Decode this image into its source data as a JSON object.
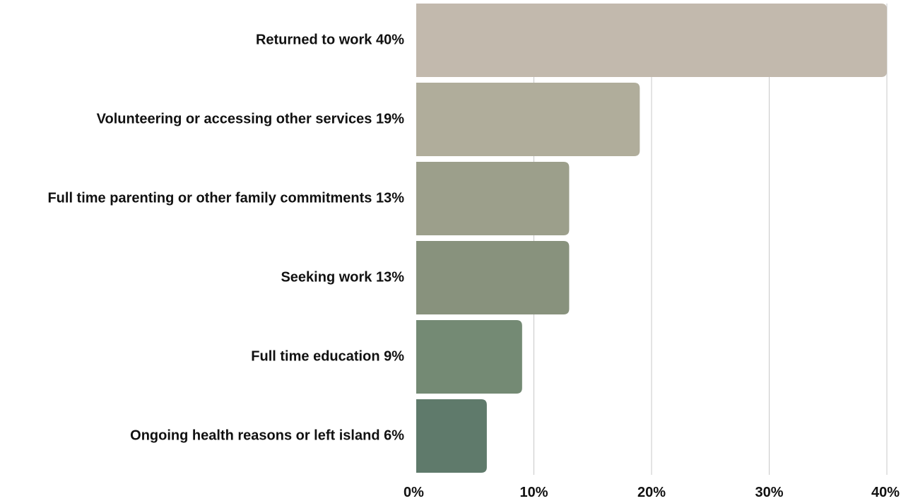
{
  "chart_data": {
    "type": "bar",
    "orientation": "horizontal",
    "title": "",
    "xlabel": "",
    "ylabel": "",
    "categories": [
      "Returned to work 40%",
      "Volunteering or accessing other services 19%",
      "Full time parenting or other family commitments 13%",
      "Seeking work 13%",
      "Full time education 9%",
      "Ongoing health reasons or left island 6%"
    ],
    "values": [
      40,
      19,
      13,
      13,
      9,
      6
    ],
    "xlim": [
      0,
      40
    ],
    "x_ticks": [
      0,
      10,
      20,
      30,
      40
    ],
    "x_tick_labels": [
      "0%",
      "10%",
      "20%",
      "30%",
      "40%"
    ],
    "grid": "vertical",
    "legend": "none",
    "colors": [
      "#c2b9ad",
      "#b0ad9b",
      "#9c9f8b",
      "#88927d",
      "#748a74",
      "#5f7a6b"
    ]
  }
}
